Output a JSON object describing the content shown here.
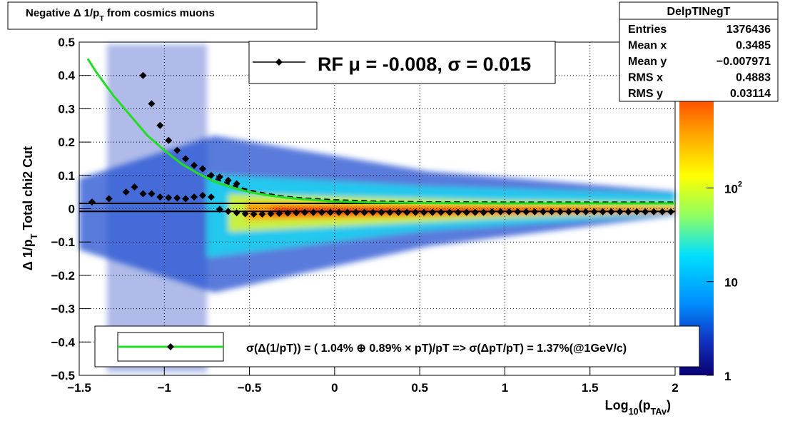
{
  "chart_data": {
    "type": "heatmap",
    "title": [
      "Negative Δ 1/p",
      "T",
      " from cosmics muons"
    ],
    "xlabel": [
      "Log",
      "10",
      "(p",
      "TAv",
      ")"
    ],
    "ylabel": [
      "Δ 1/p",
      "T",
      "  Total chi2 Cut"
    ],
    "xlim": [
      -1.5,
      2
    ],
    "ylim": [
      -0.5,
      0.5
    ],
    "xticks": [
      {
        "value": -1.5,
        "label": "−1.5"
      },
      {
        "value": -1,
        "label": "−1"
      },
      {
        "value": -0.5,
        "label": "−0.5"
      },
      0,
      0.5,
      1,
      1.5,
      2
    ],
    "yticks": [
      {
        "value": -0.5,
        "label": "−0.5"
      },
      {
        "value": -0.4,
        "label": "−0.4"
      },
      {
        "value": -0.3,
        "label": "−0.3"
      },
      {
        "value": -0.2,
        "label": "−0.2"
      },
      {
        "value": -0.1,
        "label": "−0.1"
      },
      0,
      0.1,
      0.2,
      0.3,
      0.4,
      0.5
    ],
    "grid": true,
    "zscale": "log",
    "zlim": [
      1,
      3600
    ],
    "zticks": [
      1,
      10,
      {
        "value": 100,
        "label": "10",
        "exponent": "2"
      }
    ],
    "series": [
      {
        "style": "markers",
        "color": "#000000",
        "x": [
          -1.425,
          -1.325,
          -1.225,
          -1.175,
          -1.125,
          -1.075,
          -1.025,
          -0.975,
          -0.925,
          -0.875,
          -0.825,
          -0.775,
          -0.725,
          -0.675,
          -0.625,
          -0.575,
          -0.525,
          -0.475,
          -0.425,
          -0.375,
          -0.325,
          -0.275,
          -0.225,
          -0.175,
          -0.125,
          -0.075,
          -0.025,
          0.025,
          0.075,
          0.125,
          0.175,
          0.225,
          0.275,
          0.325,
          0.375,
          0.425,
          0.475,
          0.525,
          0.575,
          0.625,
          0.675,
          0.725,
          0.775,
          0.825,
          0.875,
          0.925,
          0.975,
          1.025,
          1.075,
          1.125,
          1.175,
          1.225,
          1.275,
          1.325,
          1.375,
          1.425,
          1.475,
          1.525,
          1.575,
          1.625,
          1.675,
          1.725,
          1.775,
          1.825,
          1.875,
          1.925,
          1.975
        ],
        "values": [
          0.02,
          0.03,
          0.05,
          0.065,
          0.045,
          0.045,
          0.035,
          0.033,
          0.032,
          0.03,
          0.035,
          0.04,
          0.035,
          -0.002,
          -0.008,
          -0.012,
          -0.015,
          -0.016,
          -0.016,
          -0.015,
          -0.014,
          -0.013,
          -0.012,
          -0.011,
          -0.011,
          -0.011,
          -0.011,
          -0.011,
          -0.011,
          -0.011,
          -0.011,
          -0.011,
          -0.011,
          -0.011,
          -0.011,
          -0.011,
          -0.011,
          -0.011,
          -0.011,
          -0.011,
          -0.011,
          -0.011,
          -0.011,
          -0.011,
          -0.011,
          -0.009,
          -0.009,
          -0.009,
          -0.009,
          -0.009,
          -0.009,
          -0.009,
          -0.009,
          -0.009,
          -0.009,
          -0.009,
          -0.009,
          -0.009,
          -0.009,
          -0.009,
          -0.009,
          -0.009,
          -0.009,
          -0.009,
          -0.009,
          -0.009,
          -0.009
        ]
      },
      {
        "style": "markers",
        "color": "#000000",
        "x": [
          -1.125,
          -1.075,
          -1.025,
          -0.975,
          -0.925,
          -0.875,
          -0.825,
          -0.775,
          -0.725,
          -0.675,
          -0.625,
          -0.575
        ],
        "values": [
          0.4,
          0.315,
          0.25,
          0.205,
          0.175,
          0.15,
          0.13,
          0.12,
          0.1,
          0.095,
          0.085,
          0.075
        ]
      },
      {
        "style": "dashed",
        "color": "#000000",
        "x": [
          -0.75,
          -0.6,
          -0.5,
          -0.4,
          -0.3,
          -0.2,
          0,
          0.25,
          0.5,
          1,
          1.5,
          2
        ],
        "values": [
          0.1,
          0.07,
          0.055,
          0.045,
          0.037,
          0.032,
          0.026,
          0.022,
          0.02,
          0.019,
          0.019,
          0.019
        ]
      },
      {
        "style": "line",
        "color": "#22dd22",
        "x": [
          -1.45,
          -1.4,
          -1.3,
          -1.2,
          -1.1,
          -1.0,
          -0.9,
          -0.8,
          -0.7,
          -0.6,
          -0.5,
          -0.4,
          -0.3,
          -0.2,
          0,
          0.2,
          0.5,
          1,
          1.5,
          2
        ],
        "values": [
          0.45,
          0.41,
          0.34,
          0.28,
          0.22,
          0.175,
          0.135,
          0.105,
          0.08,
          0.063,
          0.05,
          0.041,
          0.034,
          0.029,
          0.022,
          0.019,
          0.017,
          0.016,
          0.016,
          0.016
        ]
      }
    ],
    "hlines": [
      -0.008,
      0.016
    ],
    "legend_top": [
      "RF μ = -0.008, σ =   0.015"
    ],
    "legend_bottom": [
      "σ(Δ(1/pT)) = ( 1.04% ⊕  0.89% × pT)/pT => σ(ΔpT/pT) =  1.37%(@1GeV/c)"
    ],
    "stats": {
      "title": "DelpTINegT",
      "rows": [
        [
          "Entries",
          "1376436"
        ],
        [
          "Mean x",
          "0.3485"
        ],
        [
          "Mean y",
          "−0.007971"
        ],
        [
          "RMS x",
          "0.4883"
        ],
        [
          "RMS y",
          "0.03114"
        ]
      ]
    }
  }
}
